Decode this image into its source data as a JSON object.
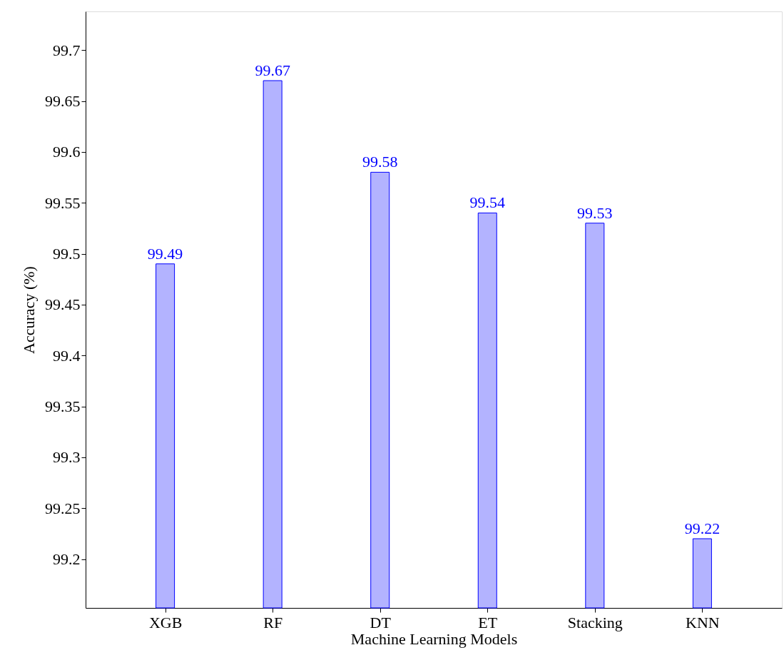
{
  "chart_data": {
    "type": "bar",
    "xlabel": "Machine Learning Models",
    "ylabel": "Accuracy (%)",
    "categories": [
      "XGB",
      "RF",
      "DT",
      "ET",
      "Stacking",
      "KNN"
    ],
    "series": [
      {
        "color": "#b3b3ff",
        "values": [
          99.49,
          99.67,
          99.58,
          99.54,
          99.53,
          99.22
        ]
      }
    ],
    "ylim": [
      99.152,
      99.738
    ],
    "yticks": [
      99.2,
      99.25,
      99.3,
      99.35,
      99.4,
      99.45,
      99.5,
      99.55,
      99.6,
      99.65,
      99.7
    ],
    "data_labels": true,
    "grid": false
  }
}
